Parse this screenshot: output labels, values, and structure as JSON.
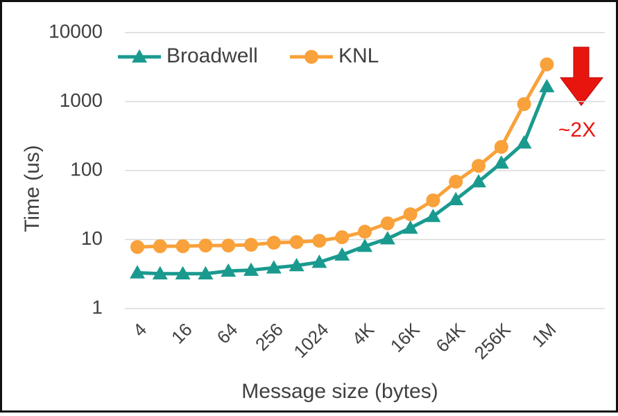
{
  "chart_data": {
    "type": "line",
    "x_label": "Message size (bytes)",
    "y_label": "Time (us)",
    "annotation": "~2X",
    "categories": [
      "4",
      null,
      "16",
      null,
      "64",
      null,
      "256",
      null,
      "1024",
      null,
      "4K",
      null,
      "16K",
      null,
      "64K",
      null,
      "256K",
      null,
      "1M"
    ],
    "series": [
      {
        "name": "Broadwell",
        "color": "#1a9a8f",
        "marker": "triangle",
        "values": [
          3.3,
          3.2,
          3.2,
          3.2,
          3.5,
          3.6,
          3.9,
          4.2,
          4.7,
          6.0,
          8.0,
          10.3,
          14.7,
          21.7,
          38,
          69,
          129,
          252,
          1650
        ]
      },
      {
        "name": "KNL",
        "color": "#f9a13a",
        "marker": "circle",
        "values": [
          7.8,
          8.0,
          8.0,
          8.2,
          8.2,
          8.4,
          9.0,
          9.2,
          9.6,
          10.8,
          13,
          17.2,
          23.3,
          37,
          69,
          117,
          220,
          920,
          3460
        ]
      }
    ],
    "ylim": [
      1,
      10000
    ],
    "yticks": [
      1,
      10,
      100,
      1000,
      10000
    ],
    "log_y": true,
    "grid": true,
    "legend": "top-left"
  }
}
